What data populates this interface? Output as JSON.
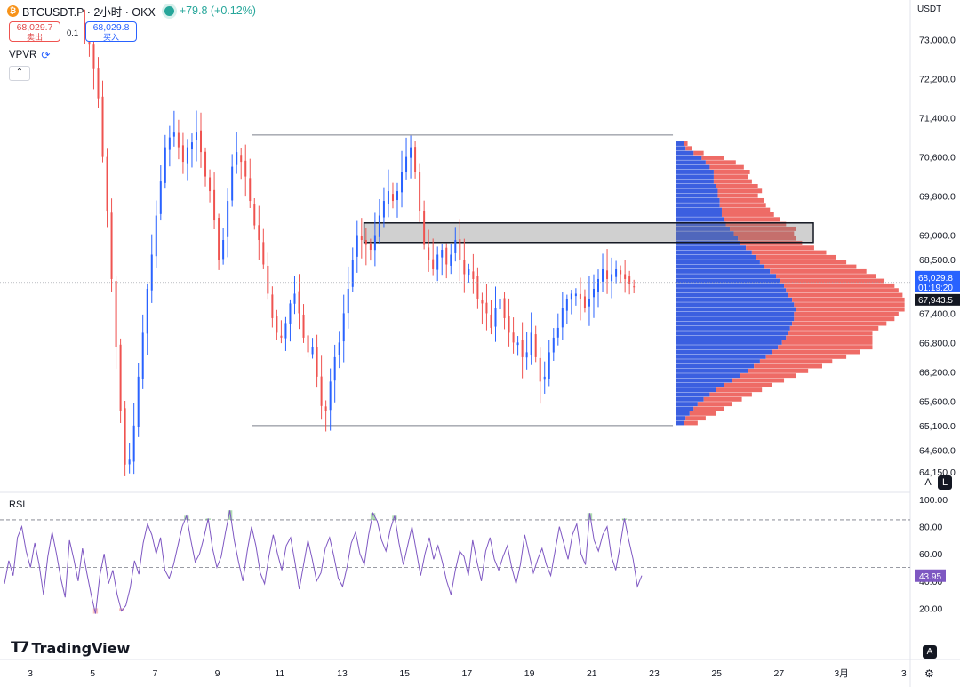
{
  "header": {
    "symbol": "BTCUSDT.P · 2小时 · OKX",
    "change": "+79.8 (+0.12%)",
    "coin_icon": "bitcoin-icon",
    "status_color": "#26a69a"
  },
  "orders": {
    "sell_price": "68,029.7",
    "sell_label": "卖出",
    "spread": "0.1",
    "buy_price": "68,029.8",
    "buy_label": "买入"
  },
  "indicators": {
    "vpvr_label": "VPVR",
    "vpvr_icon": "refresh-icon",
    "collapse_icon": "chevron-up-icon",
    "rsi_label": "RSI",
    "rsi_value_label": "43.95"
  },
  "axis": {
    "currency": "USDT",
    "price_ticks": [
      "73,000.0",
      "72,200.0",
      "71,400.0",
      "70,600.0",
      "69,800.0",
      "69,000.0",
      "68,500.0",
      "67,400.0",
      "66,800.0",
      "66,200.0",
      "65,600.0",
      "65,100.0",
      "64,600.0",
      "64,150.0"
    ],
    "price_ticks_values": [
      73000,
      72200,
      71400,
      70600,
      69800,
      69000,
      68500,
      67400,
      66800,
      66200,
      65600,
      65100,
      64600,
      64150
    ],
    "rsi_ticks": [
      "100.00",
      "80.00",
      "60.00",
      "40.00",
      "20.00"
    ],
    "rsi_ticks_values": [
      100,
      80,
      60,
      40,
      20
    ],
    "date_ticks": [
      "3",
      "5",
      "7",
      "9",
      "11",
      "13",
      "15",
      "17",
      "19",
      "21",
      "23",
      "25",
      "27",
      "3月",
      "3"
    ],
    "current_price_label": "68,029.8",
    "countdown_label": "01:19:20",
    "prev_price_label": "67,943.5",
    "current_price": 68029.8,
    "prev_price": 67943.5
  },
  "controls": {
    "auto_label": "A",
    "log_label": "L"
  },
  "brand": {
    "logo_text": "TradingView",
    "logo_icon": "tradingview-logo-icon",
    "settings_icon": "gear-icon"
  },
  "colors": {
    "up": "#2962ff",
    "down": "#ef5350",
    "vp_up": "#3b5fe0",
    "vp_down": "#ee6b66",
    "rsi_line": "#7e57c2",
    "label_blue": "#2962ff",
    "label_dark": "#131722"
  },
  "chart_data": {
    "type": "candlestick",
    "title": "BTCUSDT.P · 2小时 · OKX",
    "timeframe": "2h",
    "ylim": [
      63750,
      73450
    ],
    "x_range_days": [
      "3",
      "3"
    ],
    "price_series_close": [
      73200,
      72900,
      72400,
      71800,
      70600,
      69500,
      68100,
      66700,
      65400,
      64300,
      64400,
      65100,
      66100,
      67000,
      67900,
      68600,
      69400,
      70100,
      70800,
      71000,
      71100,
      70800,
      70500,
      70800,
      70900,
      71100,
      70700,
      70200,
      69900,
      69300,
      68500,
      68900,
      69700,
      70400,
      70700,
      70500,
      70200,
      69700,
      69200,
      68900,
      68400,
      67800,
      67300,
      67000,
      66900,
      67200,
      67600,
      67800,
      67400,
      66900,
      66600,
      66700,
      66100,
      65500,
      65400,
      66000,
      66500,
      66800,
      67400,
      67900,
      68500,
      69000,
      68900,
      68800,
      68700,
      69000,
      69400,
      69700,
      69900,
      69700,
      69900,
      70300,
      70600,
      70800,
      70300,
      69500,
      68800,
      68500,
      68300,
      68600,
      68700,
      68400,
      68600,
      68900,
      68500,
      68200,
      68300,
      68100,
      67700,
      67600,
      67400,
      67100,
      67500,
      67700,
      67300,
      67000,
      66800,
      66800,
      66500,
      66600,
      67000,
      66500,
      66000,
      66100,
      66600,
      66900,
      67100,
      67500,
      67700,
      67800,
      67800,
      67700,
      67500,
      67700,
      67900,
      68100,
      68300,
      68100,
      68200,
      68300,
      68200,
      68100,
      68000,
      67943.5
    ],
    "volume_profile": {
      "price_top": 70920,
      "price_bottom": 65100,
      "rows_up": [
        8,
        10,
        18,
        26,
        30,
        34,
        38,
        38,
        38,
        40,
        42,
        42,
        44,
        44,
        46,
        46,
        48,
        50,
        54,
        58,
        62,
        64,
        70,
        76,
        80,
        84,
        88,
        94,
        100,
        104,
        108,
        110,
        112,
        116,
        118,
        120,
        118,
        118,
        116,
        114,
        112,
        110,
        106,
        102,
        96,
        90,
        84,
        78,
        72,
        64,
        56,
        48,
        40,
        34,
        28,
        22,
        18,
        14,
        10,
        8
      ],
      "rows_down": [
        4,
        6,
        10,
        22,
        30,
        34,
        36,
        34,
        38,
        42,
        44,
        40,
        44,
        46,
        48,
        52,
        56,
        60,
        66,
        60,
        58,
        62,
        68,
        74,
        80,
        86,
        92,
        96,
        100,
        104,
        110,
        112,
        114,
        112,
        110,
        108,
        104,
        100,
        94,
        88,
        84,
        86,
        90,
        94,
        88,
        80,
        72,
        68,
        60,
        56,
        52,
        48,
        46,
        42,
        38,
        34,
        30,
        26,
        20,
        14
      ]
    },
    "boxes": [
      {
        "name": "range-box",
        "price_top": 71050,
        "price_bottom": 65100,
        "day_start": 10.1,
        "day_end": 23.6
      },
      {
        "name": "resistance-zone",
        "price_top": 69250,
        "price_bottom": 68850,
        "day_start": 13.7,
        "day_end": 28.1
      }
    ],
    "rsi": {
      "current": 43.95,
      "overbought": 85,
      "midline": 50,
      "oversold": 12,
      "values": [
        38,
        55,
        44,
        72,
        80,
        62,
        50,
        68,
        52,
        30,
        58,
        76,
        60,
        42,
        28,
        70,
        56,
        40,
        64,
        46,
        30,
        16,
        44,
        60,
        38,
        48,
        30,
        18,
        22,
        35,
        55,
        45,
        68,
        82,
        74,
        60,
        72,
        48,
        42,
        52,
        66,
        80,
        88,
        70,
        54,
        60,
        72,
        86,
        64,
        50,
        58,
        76,
        92,
        70,
        54,
        40,
        62,
        80,
        66,
        46,
        38,
        58,
        74,
        60,
        48,
        66,
        72,
        54,
        34,
        52,
        70,
        56,
        40,
        46,
        64,
        72,
        58,
        42,
        36,
        50,
        68,
        76,
        60,
        52,
        74,
        90,
        84,
        70,
        62,
        78,
        88,
        68,
        52,
        66,
        80,
        62,
        44,
        60,
        72,
        56,
        66,
        54,
        40,
        30,
        48,
        62,
        58,
        44,
        70,
        54,
        40,
        62,
        72,
        56,
        48,
        58,
        66,
        50,
        38,
        52,
        74,
        60,
        46,
        56,
        64,
        52,
        44,
        62,
        80,
        68,
        56,
        74,
        82,
        60,
        52,
        90,
        70,
        62,
        74,
        80,
        58,
        48,
        66,
        86,
        70,
        56,
        36,
        44
      ]
    }
  }
}
